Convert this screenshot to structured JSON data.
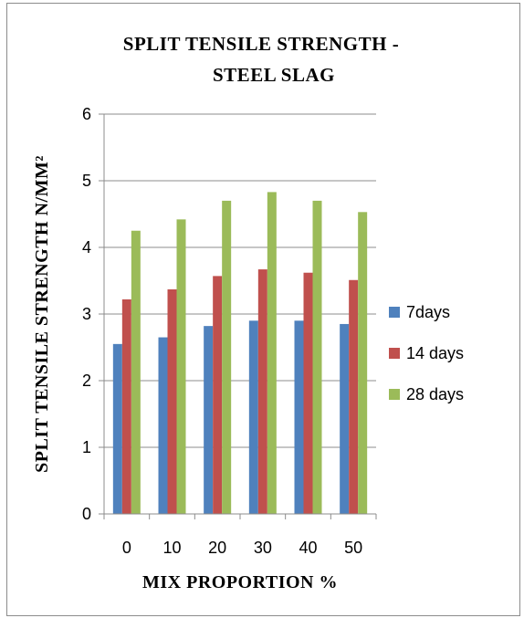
{
  "chart_data": {
    "type": "bar",
    "title_lines": [
      "SPLIT TENSILE STRENGTH -",
      "STEEL SLAG"
    ],
    "xlabel": "MIX PROPORTION %",
    "ylabel": "SPLIT TENSILE STRENGTH N/MM²",
    "categories": [
      "0",
      "10",
      "20",
      "30",
      "40",
      "50"
    ],
    "ylim": [
      0,
      6
    ],
    "yticks": [
      "0",
      "1",
      "2",
      "3",
      "4",
      "5",
      "6"
    ],
    "grid": true,
    "legend_position": "right",
    "series": [
      {
        "name": "7days",
        "color": "#4f81bd",
        "values": [
          2.55,
          2.65,
          2.82,
          2.9,
          2.9,
          2.85
        ]
      },
      {
        "name": "14 days",
        "color": "#c0504d",
        "values": [
          3.22,
          3.37,
          3.57,
          3.67,
          3.62,
          3.51
        ]
      },
      {
        "name": "28 days",
        "color": "#9bbb59",
        "values": [
          4.25,
          4.42,
          4.7,
          4.83,
          4.7,
          4.53
        ]
      }
    ]
  }
}
